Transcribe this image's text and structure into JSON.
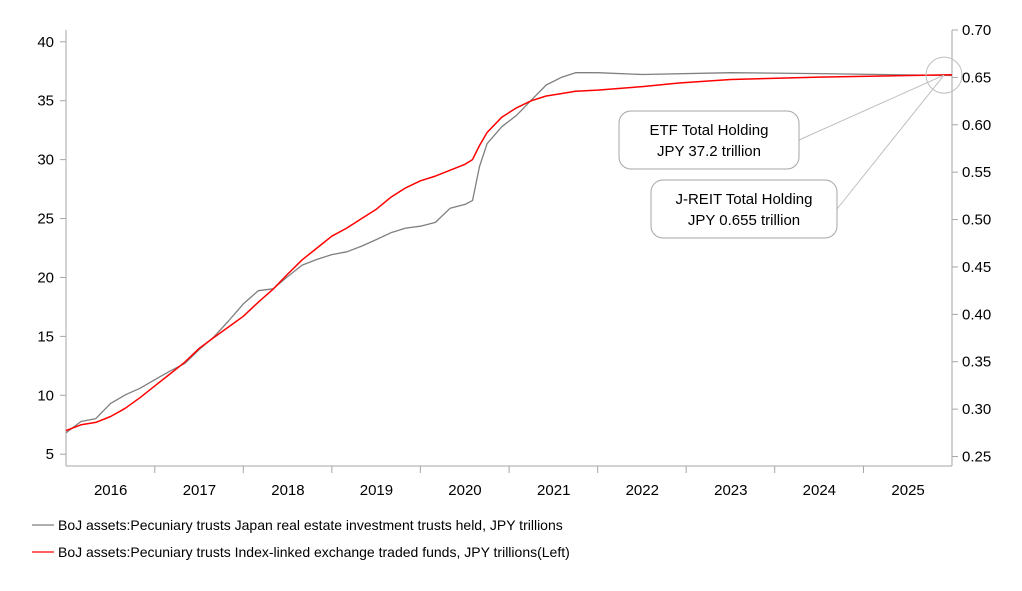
{
  "chart_data": {
    "type": "line",
    "title": "",
    "x_axis": {
      "type": "date",
      "range": [
        "2015-07-01",
        "2025-07-01"
      ],
      "tick_labels": [
        "2016",
        "2017",
        "2018",
        "2019",
        "2020",
        "2021",
        "2022",
        "2023",
        "2024",
        "2025"
      ]
    },
    "y_left": {
      "range": [
        4,
        41
      ],
      "ticks": [
        5,
        10,
        15,
        20,
        25,
        30,
        35,
        40
      ]
    },
    "y_right": {
      "range": [
        0.24,
        0.7
      ],
      "ticks": [
        0.25,
        0.3,
        0.35,
        0.4,
        0.45,
        0.5,
        0.55,
        0.6,
        0.65,
        0.7
      ],
      "tick_decimals": 2
    },
    "grid": false,
    "legend_position": "bottom-left",
    "series": [
      {
        "name": "BoJ assets:Pecuniary trusts Japan real estate investment trusts held, JPY trillions",
        "axis": "right",
        "color": "#7f7f7f",
        "points": [
          [
            "2015-07-01",
            0.275
          ],
          [
            "2015-09-01",
            0.287
          ],
          [
            "2015-11-01",
            0.29
          ],
          [
            "2016-01-01",
            0.306
          ],
          [
            "2016-03-01",
            0.315
          ],
          [
            "2016-05-01",
            0.322
          ],
          [
            "2016-07-01",
            0.331
          ],
          [
            "2016-09-01",
            0.34
          ],
          [
            "2016-11-01",
            0.348
          ],
          [
            "2017-01-01",
            0.363
          ],
          [
            "2017-03-01",
            0.376
          ],
          [
            "2017-05-01",
            0.393
          ],
          [
            "2017-07-01",
            0.411
          ],
          [
            "2017-09-01",
            0.425
          ],
          [
            "2017-11-01",
            0.427
          ],
          [
            "2018-01-01",
            0.44
          ],
          [
            "2018-03-01",
            0.452
          ],
          [
            "2018-05-01",
            0.458
          ],
          [
            "2018-07-01",
            0.463
          ],
          [
            "2018-09-01",
            0.466
          ],
          [
            "2018-11-01",
            0.472
          ],
          [
            "2019-01-01",
            0.479
          ],
          [
            "2019-03-01",
            0.486
          ],
          [
            "2019-05-01",
            0.491
          ],
          [
            "2019-07-01",
            0.493
          ],
          [
            "2019-09-01",
            0.497
          ],
          [
            "2019-11-01",
            0.512
          ],
          [
            "2020-01-01",
            0.516
          ],
          [
            "2020-02-01",
            0.52
          ],
          [
            "2020-03-01",
            0.556
          ],
          [
            "2020-04-01",
            0.58
          ],
          [
            "2020-06-01",
            0.598
          ],
          [
            "2020-08-01",
            0.61
          ],
          [
            "2020-10-01",
            0.626
          ],
          [
            "2020-12-01",
            0.642
          ],
          [
            "2021-02-01",
            0.65
          ],
          [
            "2021-04-01",
            0.655
          ],
          [
            "2021-07-01",
            0.655
          ],
          [
            "2022-01-01",
            0.653
          ],
          [
            "2023-01-01",
            0.655
          ],
          [
            "2024-01-01",
            0.654
          ],
          [
            "2025-07-01",
            0.652
          ]
        ]
      },
      {
        "name": "BoJ assets:Pecuniary trusts Index-linked exchange traded funds, JPY trillions(Left)",
        "axis": "left",
        "color": "#ff0000",
        "points": [
          [
            "2015-07-01",
            7.0
          ],
          [
            "2015-09-01",
            7.5
          ],
          [
            "2015-11-01",
            7.7
          ],
          [
            "2016-01-01",
            8.2
          ],
          [
            "2016-03-01",
            8.9
          ],
          [
            "2016-05-01",
            9.8
          ],
          [
            "2016-07-01",
            10.8
          ],
          [
            "2016-09-01",
            11.8
          ],
          [
            "2016-11-01",
            12.8
          ],
          [
            "2017-01-01",
            14.0
          ],
          [
            "2017-03-01",
            14.9
          ],
          [
            "2017-05-01",
            15.8
          ],
          [
            "2017-07-01",
            16.7
          ],
          [
            "2017-09-01",
            17.9
          ],
          [
            "2017-11-01",
            19.0
          ],
          [
            "2018-01-01",
            20.3
          ],
          [
            "2018-03-01",
            21.5
          ],
          [
            "2018-05-01",
            22.5
          ],
          [
            "2018-07-01",
            23.5
          ],
          [
            "2018-09-01",
            24.2
          ],
          [
            "2018-11-01",
            25.0
          ],
          [
            "2019-01-01",
            25.8
          ],
          [
            "2019-03-01",
            26.8
          ],
          [
            "2019-05-01",
            27.6
          ],
          [
            "2019-07-01",
            28.2
          ],
          [
            "2019-09-01",
            28.6
          ],
          [
            "2019-11-01",
            29.1
          ],
          [
            "2020-01-01",
            29.6
          ],
          [
            "2020-02-01",
            30.0
          ],
          [
            "2020-03-01",
            31.2
          ],
          [
            "2020-04-01",
            32.3
          ],
          [
            "2020-06-01",
            33.6
          ],
          [
            "2020-08-01",
            34.4
          ],
          [
            "2020-10-01",
            35.0
          ],
          [
            "2020-12-01",
            35.4
          ],
          [
            "2021-02-01",
            35.6
          ],
          [
            "2021-04-01",
            35.8
          ],
          [
            "2021-07-01",
            35.9
          ],
          [
            "2022-01-01",
            36.2
          ],
          [
            "2022-06-01",
            36.5
          ],
          [
            "2023-01-01",
            36.8
          ],
          [
            "2024-01-01",
            37.0
          ],
          [
            "2025-07-01",
            37.2
          ]
        ]
      }
    ],
    "annotations": [
      {
        "lines": [
          "ETF Total Holding",
          "JPY 37.2 trillion"
        ]
      },
      {
        "lines": [
          "J-REIT Total Holding",
          "JPY 0.655 trillion"
        ]
      }
    ]
  }
}
